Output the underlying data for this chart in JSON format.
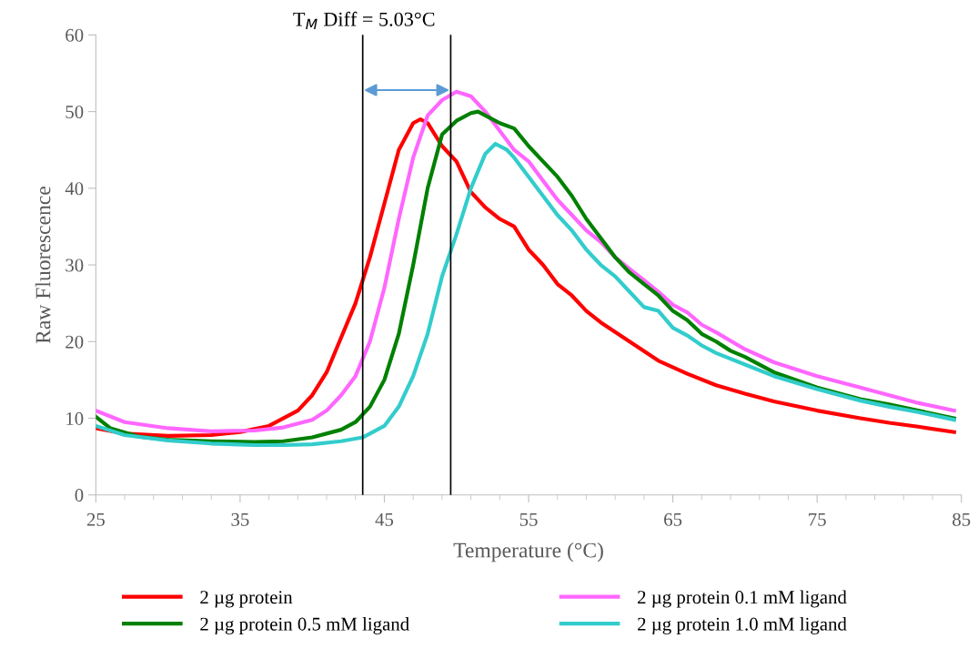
{
  "chart_data": {
    "type": "line",
    "xlabel": "Temperature (°C)",
    "ylabel": "Raw Fluorescence",
    "annotations": [
      "T$_{M}$ Diff = 5.03°C"
    ],
    "xlim": [
      25,
      85
    ],
    "xticks": [
      25,
      35,
      45,
      55,
      65,
      75,
      85
    ],
    "ylim": [
      0,
      60
    ],
    "yticks": [
      0,
      10,
      20,
      30,
      40,
      50,
      60
    ],
    "grid": false,
    "legend": "bottom",
    "marker": "none",
    "line_style": "solid",
    "ref_lines": [
      {
        "axis": "x",
        "value": 43.5,
        "color": "#000000"
      },
      {
        "axis": "x",
        "value": 49.6,
        "color": "#000000"
      }
    ],
    "series": [
      {
        "name": "2 µg protein",
        "color": "#ff0000",
        "x": [
          25,
          27,
          30,
          33,
          35,
          37,
          39,
          40,
          41,
          42,
          43,
          44,
          45,
          46,
          47,
          47.5,
          48,
          49,
          50,
          51,
          52,
          53,
          54,
          55,
          56,
          57,
          58,
          59,
          60,
          62,
          64,
          66,
          68,
          70,
          72,
          75,
          78,
          80,
          82,
          84.5
        ],
        "values": [
          8.7,
          8.0,
          7.7,
          7.8,
          8.2,
          9.0,
          11,
          13,
          16,
          20.5,
          25,
          31,
          38,
          45,
          48.5,
          49,
          48.5,
          45.5,
          43.5,
          39.5,
          37.5,
          36,
          35,
          32,
          30,
          27.5,
          26,
          24,
          22.5,
          20,
          17.5,
          15.8,
          14.3,
          13.2,
          12.2,
          11,
          10,
          9.4,
          8.9,
          8.2
        ]
      },
      {
        "name": "2 µg protein 0.1 mM ligand",
        "color": "#ff66ff",
        "x": [
          25,
          27,
          30,
          33,
          36,
          38,
          40,
          41,
          42,
          43,
          44,
          45,
          46,
          47,
          48,
          49,
          50,
          51,
          52,
          53,
          54,
          55,
          56,
          57,
          58,
          59,
          60,
          61,
          62,
          63,
          64,
          65,
          66,
          67,
          68,
          70,
          72,
          75,
          78,
          80,
          82,
          84.5
        ],
        "values": [
          11,
          9.5,
          8.7,
          8.3,
          8.4,
          8.8,
          9.8,
          11,
          13,
          15.5,
          20,
          27,
          36,
          44,
          49.5,
          51.5,
          52.6,
          52,
          50,
          47.5,
          45,
          43.5,
          41,
          38.5,
          36.5,
          34.5,
          33,
          31,
          29.5,
          28,
          26.5,
          24.8,
          23.8,
          22.2,
          21.2,
          19,
          17.3,
          15.5,
          14,
          13,
          12,
          11
        ]
      },
      {
        "name": "2 µg protein 0.5 mM ligand",
        "color": "#008000",
        "x": [
          25,
          26,
          28,
          30,
          33,
          36,
          38,
          40,
          42,
          43,
          44,
          45,
          46,
          47,
          48,
          49,
          50,
          51,
          51.5,
          52,
          53,
          54,
          55,
          56,
          57,
          58,
          59,
          60,
          61,
          62,
          63,
          64,
          65,
          66,
          67,
          68,
          69,
          70,
          72,
          75,
          78,
          80,
          82,
          84.5
        ],
        "values": [
          10.2,
          8.7,
          7.6,
          7.2,
          7.0,
          6.9,
          7.0,
          7.5,
          8.5,
          9.5,
          11.5,
          15,
          21,
          30,
          40,
          47,
          48.8,
          49.8,
          50,
          49.5,
          48.5,
          47.8,
          45.5,
          43.5,
          41.5,
          39,
          36,
          33.5,
          31,
          29,
          27.5,
          26,
          24,
          22.8,
          21,
          20,
          18.8,
          18,
          16,
          14,
          12.5,
          11.8,
          11,
          10
        ]
      },
      {
        "name": "2 µg protein 1.0 mM ligand",
        "color": "#33cccc",
        "x": [
          25,
          27,
          30,
          33,
          36,
          38,
          40,
          42,
          43.5,
          45,
          46,
          47,
          48,
          49,
          50,
          51,
          52,
          52.7,
          53.5,
          54,
          55,
          56,
          57,
          58,
          59,
          60,
          61,
          62,
          63,
          64,
          65,
          66,
          67,
          68,
          70,
          72,
          75,
          78,
          80,
          82,
          84.5
        ],
        "values": [
          9,
          7.8,
          7.1,
          6.7,
          6.5,
          6.5,
          6.6,
          7.0,
          7.5,
          9,
          11.5,
          15.5,
          21,
          28.5,
          34,
          40,
          44.5,
          45.8,
          45,
          44,
          41.5,
          39,
          36.5,
          34.5,
          32,
          30,
          28.5,
          26.5,
          24.5,
          24,
          21.8,
          20.8,
          19.5,
          18.5,
          17,
          15.5,
          13.8,
          12.3,
          11.5,
          10.8,
          9.8
        ]
      }
    ]
  }
}
